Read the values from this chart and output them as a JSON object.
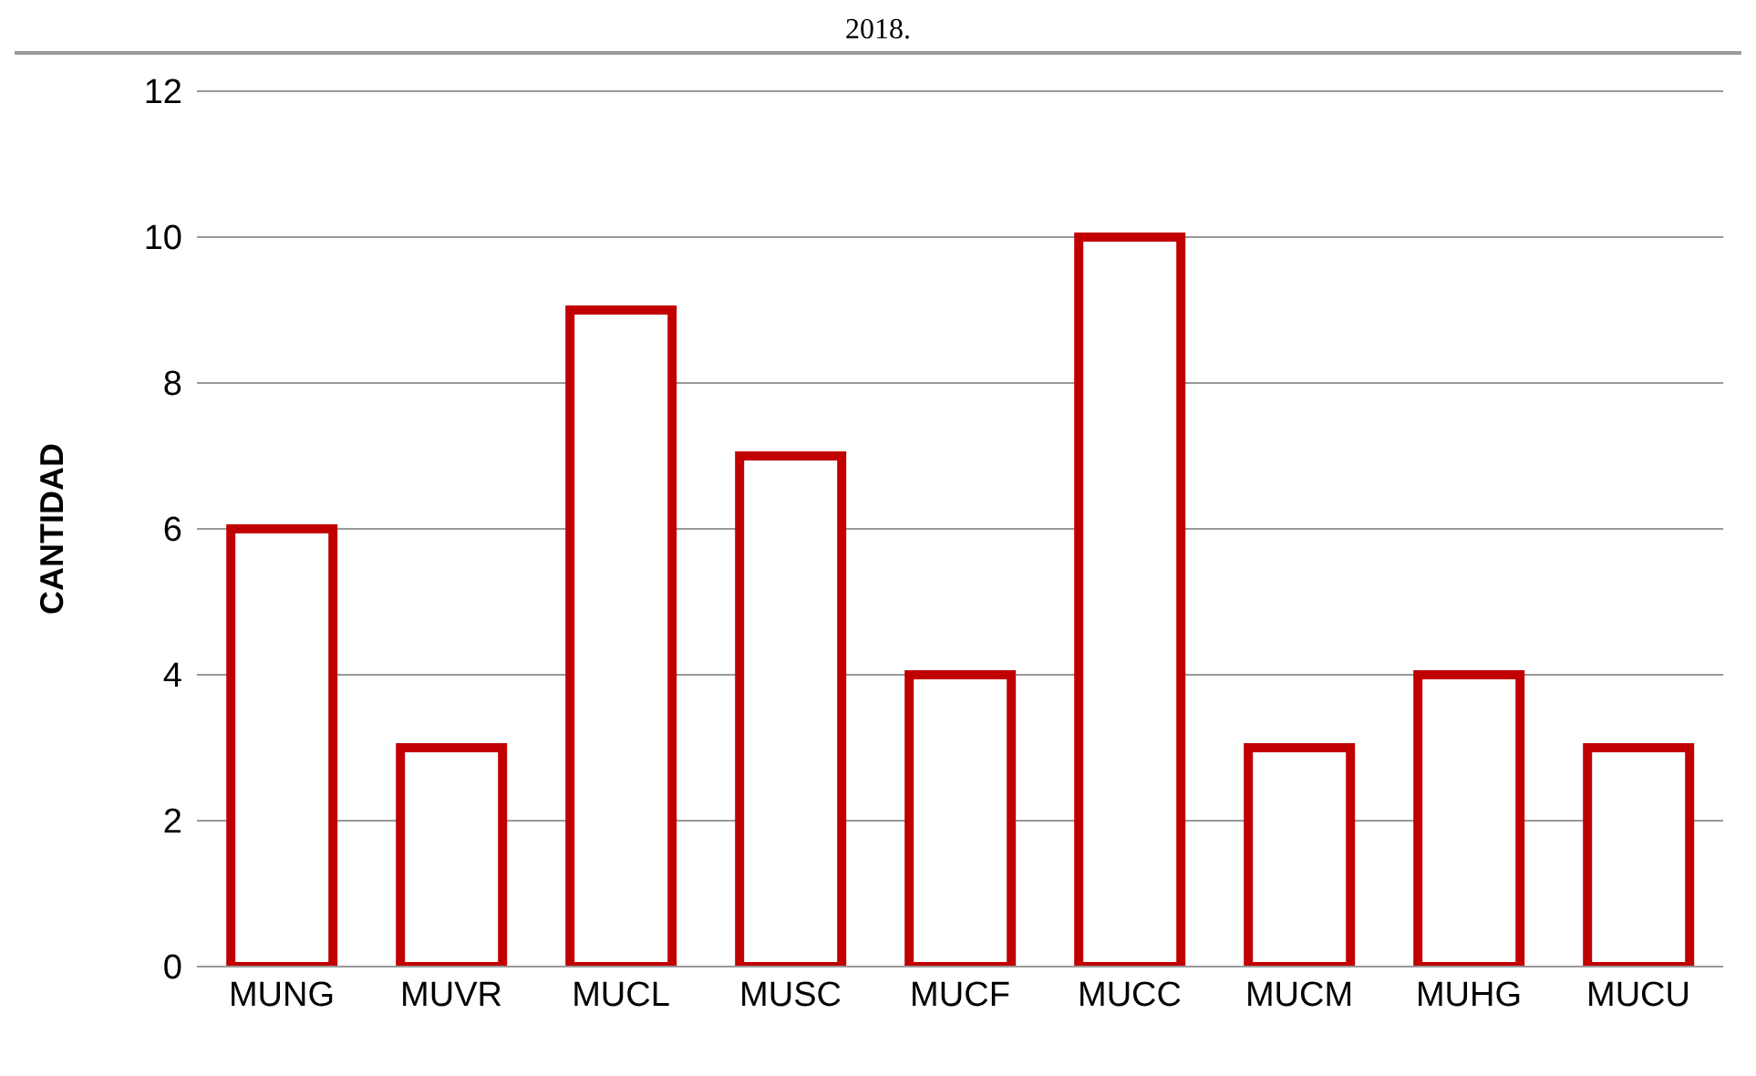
{
  "chart_data": {
    "type": "bar",
    "title": "2018.",
    "ylabel": "CANTIDAD",
    "categories": [
      "MUNG",
      "MUVR",
      "MUCL",
      "MUSC",
      "MUCF",
      "MUCC",
      "MUCM",
      "MUHG",
      "MUCU"
    ],
    "values": [
      6,
      3,
      9,
      7,
      4,
      10,
      3,
      4,
      3
    ],
    "color": "#c00000",
    "ylim": [
      0,
      12
    ],
    "yticks": [
      0,
      2,
      4,
      6,
      8,
      10,
      12
    ],
    "grid": "y"
  }
}
